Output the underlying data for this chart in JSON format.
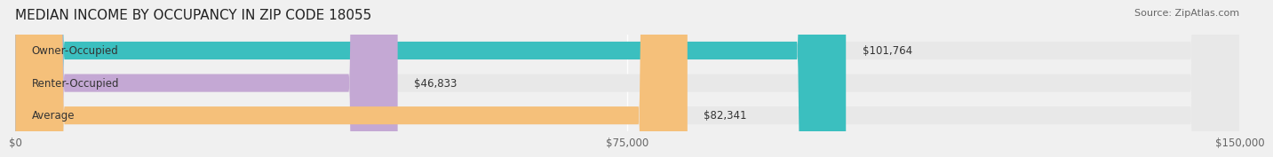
{
  "title": "MEDIAN INCOME BY OCCUPANCY IN ZIP CODE 18055",
  "source": "Source: ZipAtlas.com",
  "categories": [
    "Owner-Occupied",
    "Renter-Occupied",
    "Average"
  ],
  "values": [
    101764,
    46833,
    82341
  ],
  "bar_colors": [
    "#3bbfbf",
    "#c4a8d4",
    "#f5c07a"
  ],
  "bar_labels": [
    "$101,764",
    "$46,833",
    "$82,341"
  ],
  "xlim": [
    0,
    150000
  ],
  "xticks": [
    0,
    75000,
    150000
  ],
  "xticklabels": [
    "$0",
    "$75,000",
    "$150,000"
  ],
  "background_color": "#f0f0f0",
  "bar_bg_color": "#e8e8e8",
  "title_fontsize": 11,
  "label_fontsize": 8.5,
  "tick_fontsize": 8.5,
  "source_fontsize": 8
}
